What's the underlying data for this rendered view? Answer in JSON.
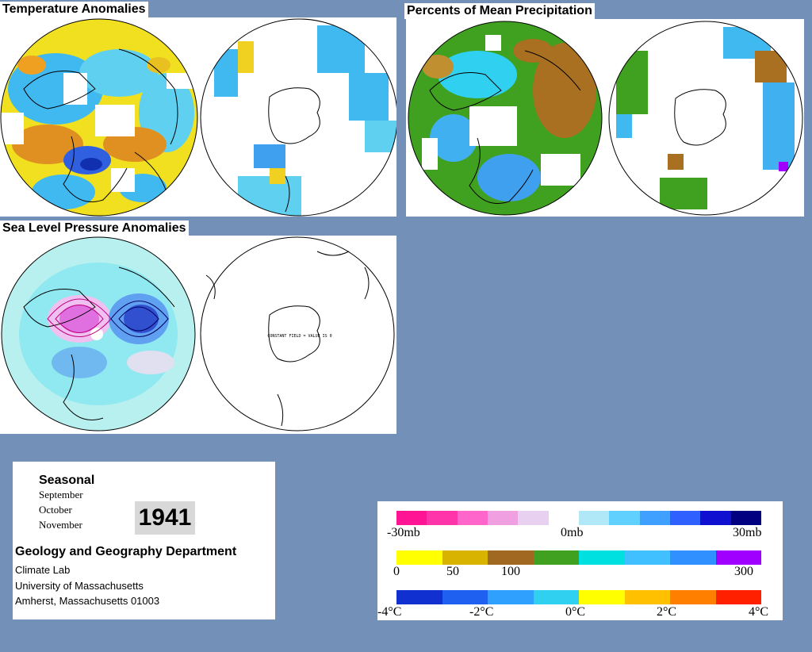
{
  "titles": {
    "temperature": "Temperature Anomalies",
    "precipitation": "Percents of Mean Precipitation",
    "pressure": "Sea Level Pressure Anomalies"
  },
  "southern_pressure_note": "CONSTANT FIELD = VALUE IS 0",
  "info": {
    "season": "Seasonal",
    "months": [
      "September",
      "October",
      "November"
    ],
    "year": "1941",
    "department": "Geology and Geography Department",
    "lab": "Climate Lab",
    "university": "University of Massachusetts",
    "address": "Amherst, Massachusetts 01003"
  },
  "legend": {
    "pressure": {
      "labels": [
        "-30mb",
        "0mb",
        "30mb"
      ],
      "colors": [
        "#ff1493",
        "#ff33aa",
        "#ff66cc",
        "#f0a0e0",
        "#e8d0f0",
        "#ffffff",
        "#b0e8f8",
        "#60d0ff",
        "#40a0ff",
        "#3060ff",
        "#1010d0",
        "#000080"
      ]
    },
    "precipitation": {
      "labels": [
        "0",
        "50",
        "100",
        "300"
      ],
      "colors": [
        "#ffff00",
        "#d8b400",
        "#a06820",
        "#40a020",
        "#00e0e0",
        "#40c0ff",
        "#3090ff",
        "#a000ff"
      ]
    },
    "temperature": {
      "labels": [
        "-4°C",
        "-2°C",
        "0°C",
        "2°C",
        "4°C"
      ],
      "colors": [
        "#1030d0",
        "#2060f0",
        "#30a0ff",
        "#30d0f0",
        "#ffff00",
        "#ffc000",
        "#ff8000",
        "#ff2000"
      ]
    }
  }
}
